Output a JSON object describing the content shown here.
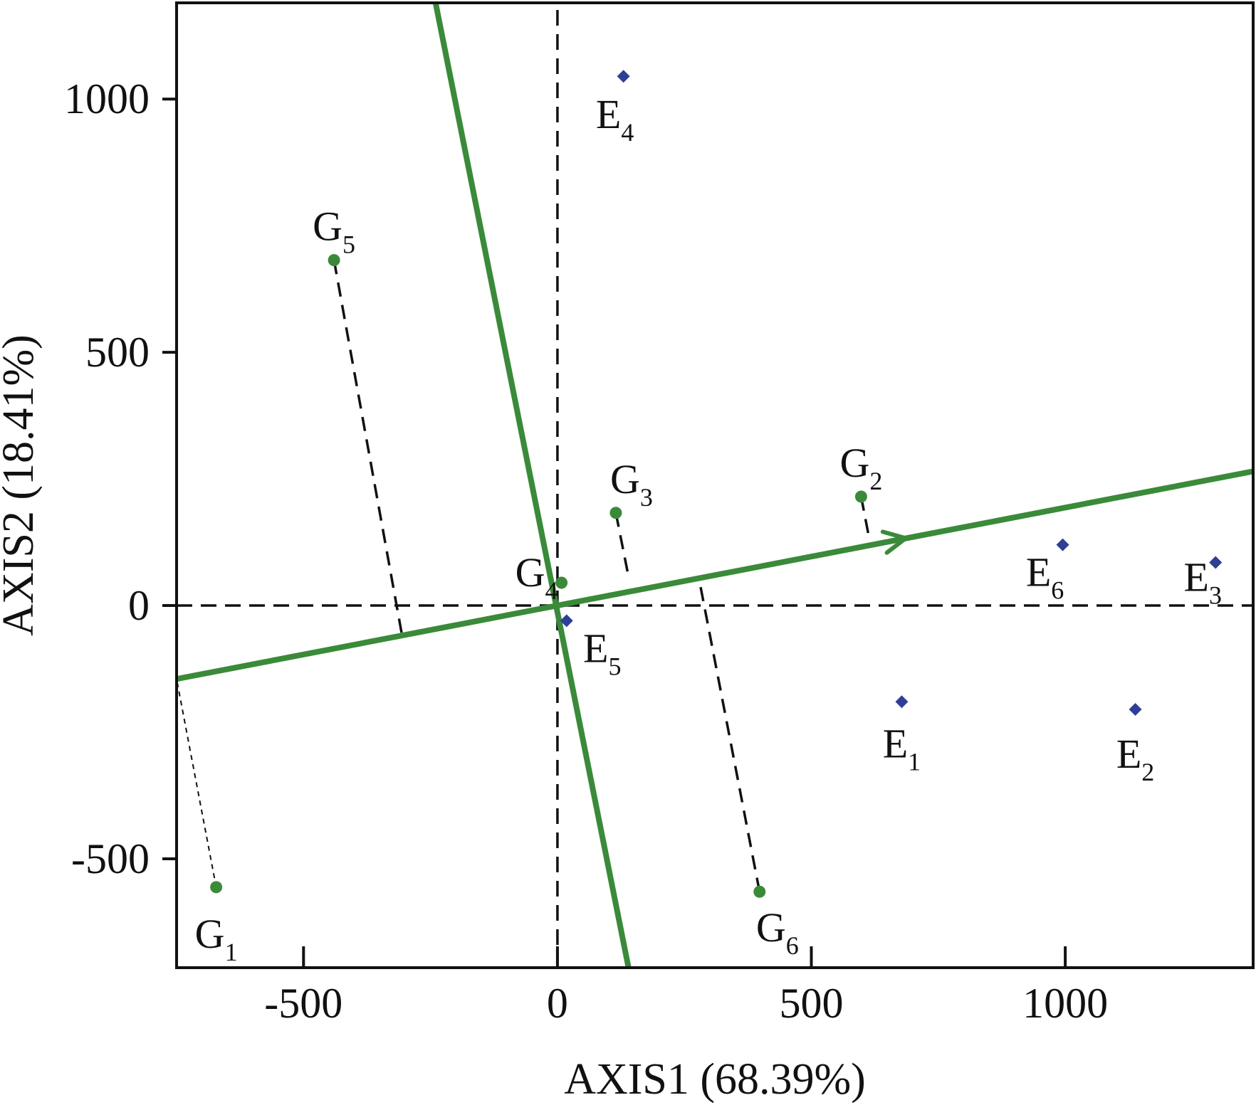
{
  "chart_data": {
    "type": "scatter",
    "xlabel": "AXIS1 (68.39%)",
    "ylabel": "AXIS2 (18.41%)",
    "xlim": [
      -750,
      1370
    ],
    "ylim": [
      -715,
      1190
    ],
    "xticks": [
      -500,
      0,
      500,
      1000
    ],
    "yticks": [
      -500,
      0,
      500,
      1000
    ],
    "xtick_labels": [
      "-500",
      "0",
      "500",
      "1000"
    ],
    "ytick_labels": [
      "-500",
      "0",
      "500",
      "1000"
    ],
    "grid": false,
    "reference_lines": {
      "x": 0,
      "y": 0,
      "style": "dashed"
    },
    "colors": {
      "genotype": "#3a8a3a",
      "environment": "#2e3f96",
      "axis": "#111111"
    },
    "genotypes": [
      {
        "label": "G",
        "sub": "1",
        "x": -672,
        "y": -556
      },
      {
        "label": "G",
        "sub": "2",
        "x": 598,
        "y": 215
      },
      {
        "label": "G",
        "sub": "3",
        "x": 115,
        "y": 183
      },
      {
        "label": "G",
        "sub": "4",
        "x": 8,
        "y": 45
      },
      {
        "label": "G",
        "sub": "5",
        "x": -440,
        "y": 682
      },
      {
        "label": "G",
        "sub": "6",
        "x": 398,
        "y": -565
      }
    ],
    "environments": [
      {
        "label": "E",
        "sub": "1",
        "x": 678,
        "y": -190
      },
      {
        "label": "E",
        "sub": "2",
        "x": 1138,
        "y": -205
      },
      {
        "label": "E",
        "sub": "3",
        "x": 1296,
        "y": 85
      },
      {
        "label": "E",
        "sub": "4",
        "x": 130,
        "y": 1045
      },
      {
        "label": "E",
        "sub": "5",
        "x": 18,
        "y": -30
      },
      {
        "label": "E",
        "sub": "6",
        "x": 995,
        "y": 120
      }
    ],
    "average_environment_axis": {
      "line": [
        [
          -750,
          -145
        ],
        [
          1370,
          265
        ]
      ],
      "arrow_at": [
        686,
        133
      ]
    },
    "perpendicular_axis": {
      "line": [
        [
          -240,
          1190
        ],
        [
          140,
          -715
        ]
      ]
    },
    "projections": [
      {
        "from": [
          -672,
          -556
        ],
        "to": [
          -750,
          -145
        ]
      },
      {
        "from": [
          598,
          215
        ],
        "to": [
          615,
          127
        ]
      },
      {
        "from": [
          115,
          183
        ],
        "to": [
          140,
          57
        ]
      },
      {
        "from": [
          -440,
          682
        ],
        "to": [
          -306,
          -59
        ]
      },
      {
        "from": [
          398,
          -565
        ],
        "to": [
          278,
          57
        ]
      }
    ]
  }
}
